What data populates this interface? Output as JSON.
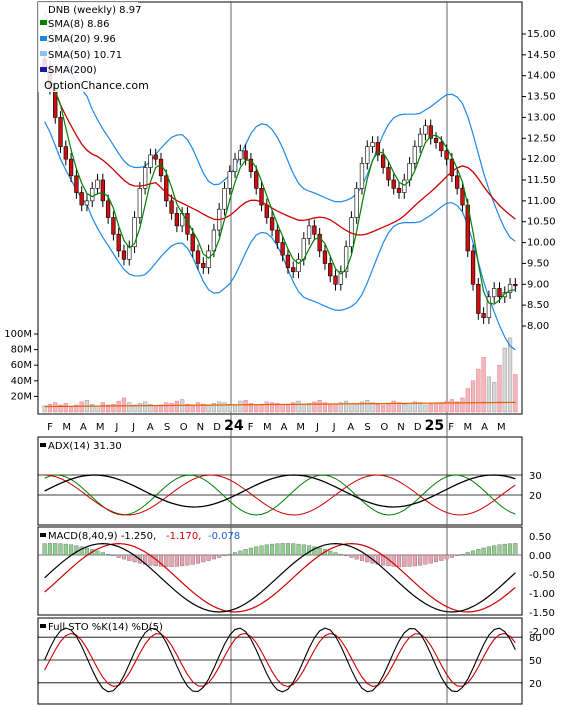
{
  "chart_data": {
    "type": "candlestick",
    "ticker_label": "DNB (weekly) 8.97",
    "watermark": "OptionChance.com",
    "legend": [
      {
        "label": "SMA(8) 8.86",
        "color": "#008000"
      },
      {
        "label": "SMA(20) 9.96",
        "color": "#1e88e5"
      },
      {
        "label": "SMA(50) 10.71",
        "color": "#89c4f4"
      },
      {
        "label": "SMA(200)",
        "color": "#1a1aa0"
      }
    ],
    "price_axis": {
      "min": 7.5,
      "max": 15.5,
      "ticks": [
        "15.00",
        "14.50",
        "14.00",
        "13.50",
        "13.00",
        "12.50",
        "12.00",
        "11.50",
        "11.00",
        "10.50",
        "10.00",
        "9.50",
        "9.00",
        "8.50",
        "8.00"
      ]
    },
    "volume_axis": {
      "ticks": [
        "100M",
        "80M",
        "60M",
        "40M",
        "20M"
      ]
    },
    "x_axis": [
      "F",
      "M",
      "A",
      "M",
      "J",
      "J",
      "A",
      "S",
      "O",
      "N",
      "D",
      "24",
      "F",
      "M",
      "A",
      "M",
      "J",
      "J",
      "A",
      "S",
      "O",
      "N",
      "D",
      "25",
      "F",
      "M",
      "A",
      "M"
    ],
    "x_bold": [
      "24",
      "25"
    ],
    "price_series": {
      "close": [
        14.2,
        13.7,
        13.0,
        12.3,
        12.0,
        11.6,
        11.2,
        10.9,
        11.0,
        11.3,
        11.5,
        11.0,
        10.6,
        10.2,
        9.8,
        9.6,
        9.9,
        10.6,
        11.3,
        11.8,
        12.1,
        12.0,
        11.6,
        11.0,
        10.7,
        10.4,
        10.7,
        10.2,
        9.8,
        9.5,
        9.4,
        9.8,
        10.3,
        10.8,
        11.3,
        11.7,
        12.0,
        12.2,
        12.0,
        11.7,
        11.3,
        10.9,
        10.6,
        10.3,
        10.0,
        9.7,
        9.4,
        9.3,
        9.6,
        10.1,
        10.4,
        10.2,
        9.8,
        9.5,
        9.2,
        9.0,
        9.3,
        9.9,
        10.6,
        11.3,
        11.9,
        12.3,
        12.4,
        12.1,
        11.8,
        11.5,
        11.3,
        11.2,
        11.5,
        11.9,
        12.3,
        12.6,
        12.8,
        12.5,
        12.4,
        12.2,
        12.0,
        11.6,
        11.3,
        10.9,
        9.8,
        9.0,
        8.3,
        8.2,
        8.7,
        8.9,
        8.7,
        8.8,
        9.0,
        8.97
      ]
    },
    "sma8_label": "SMA(8) 8.86",
    "volume_peak_note": "",
    "adx": {
      "label": "ADX(14) 31.30",
      "ticks": [
        "30",
        "20"
      ]
    },
    "macd": {
      "label": "MACD(8,40,9) -1.250,",
      "value2": "-1.170,",
      "value3": "-0.078",
      "ticks": [
        "0.50",
        "0.00",
        "-0.50",
        "-1.00",
        "-1.50",
        "-2.00"
      ]
    },
    "stoch": {
      "label": "Full STO %K(14) %D(5)",
      "ticks": [
        "80",
        "50",
        "20"
      ]
    }
  }
}
